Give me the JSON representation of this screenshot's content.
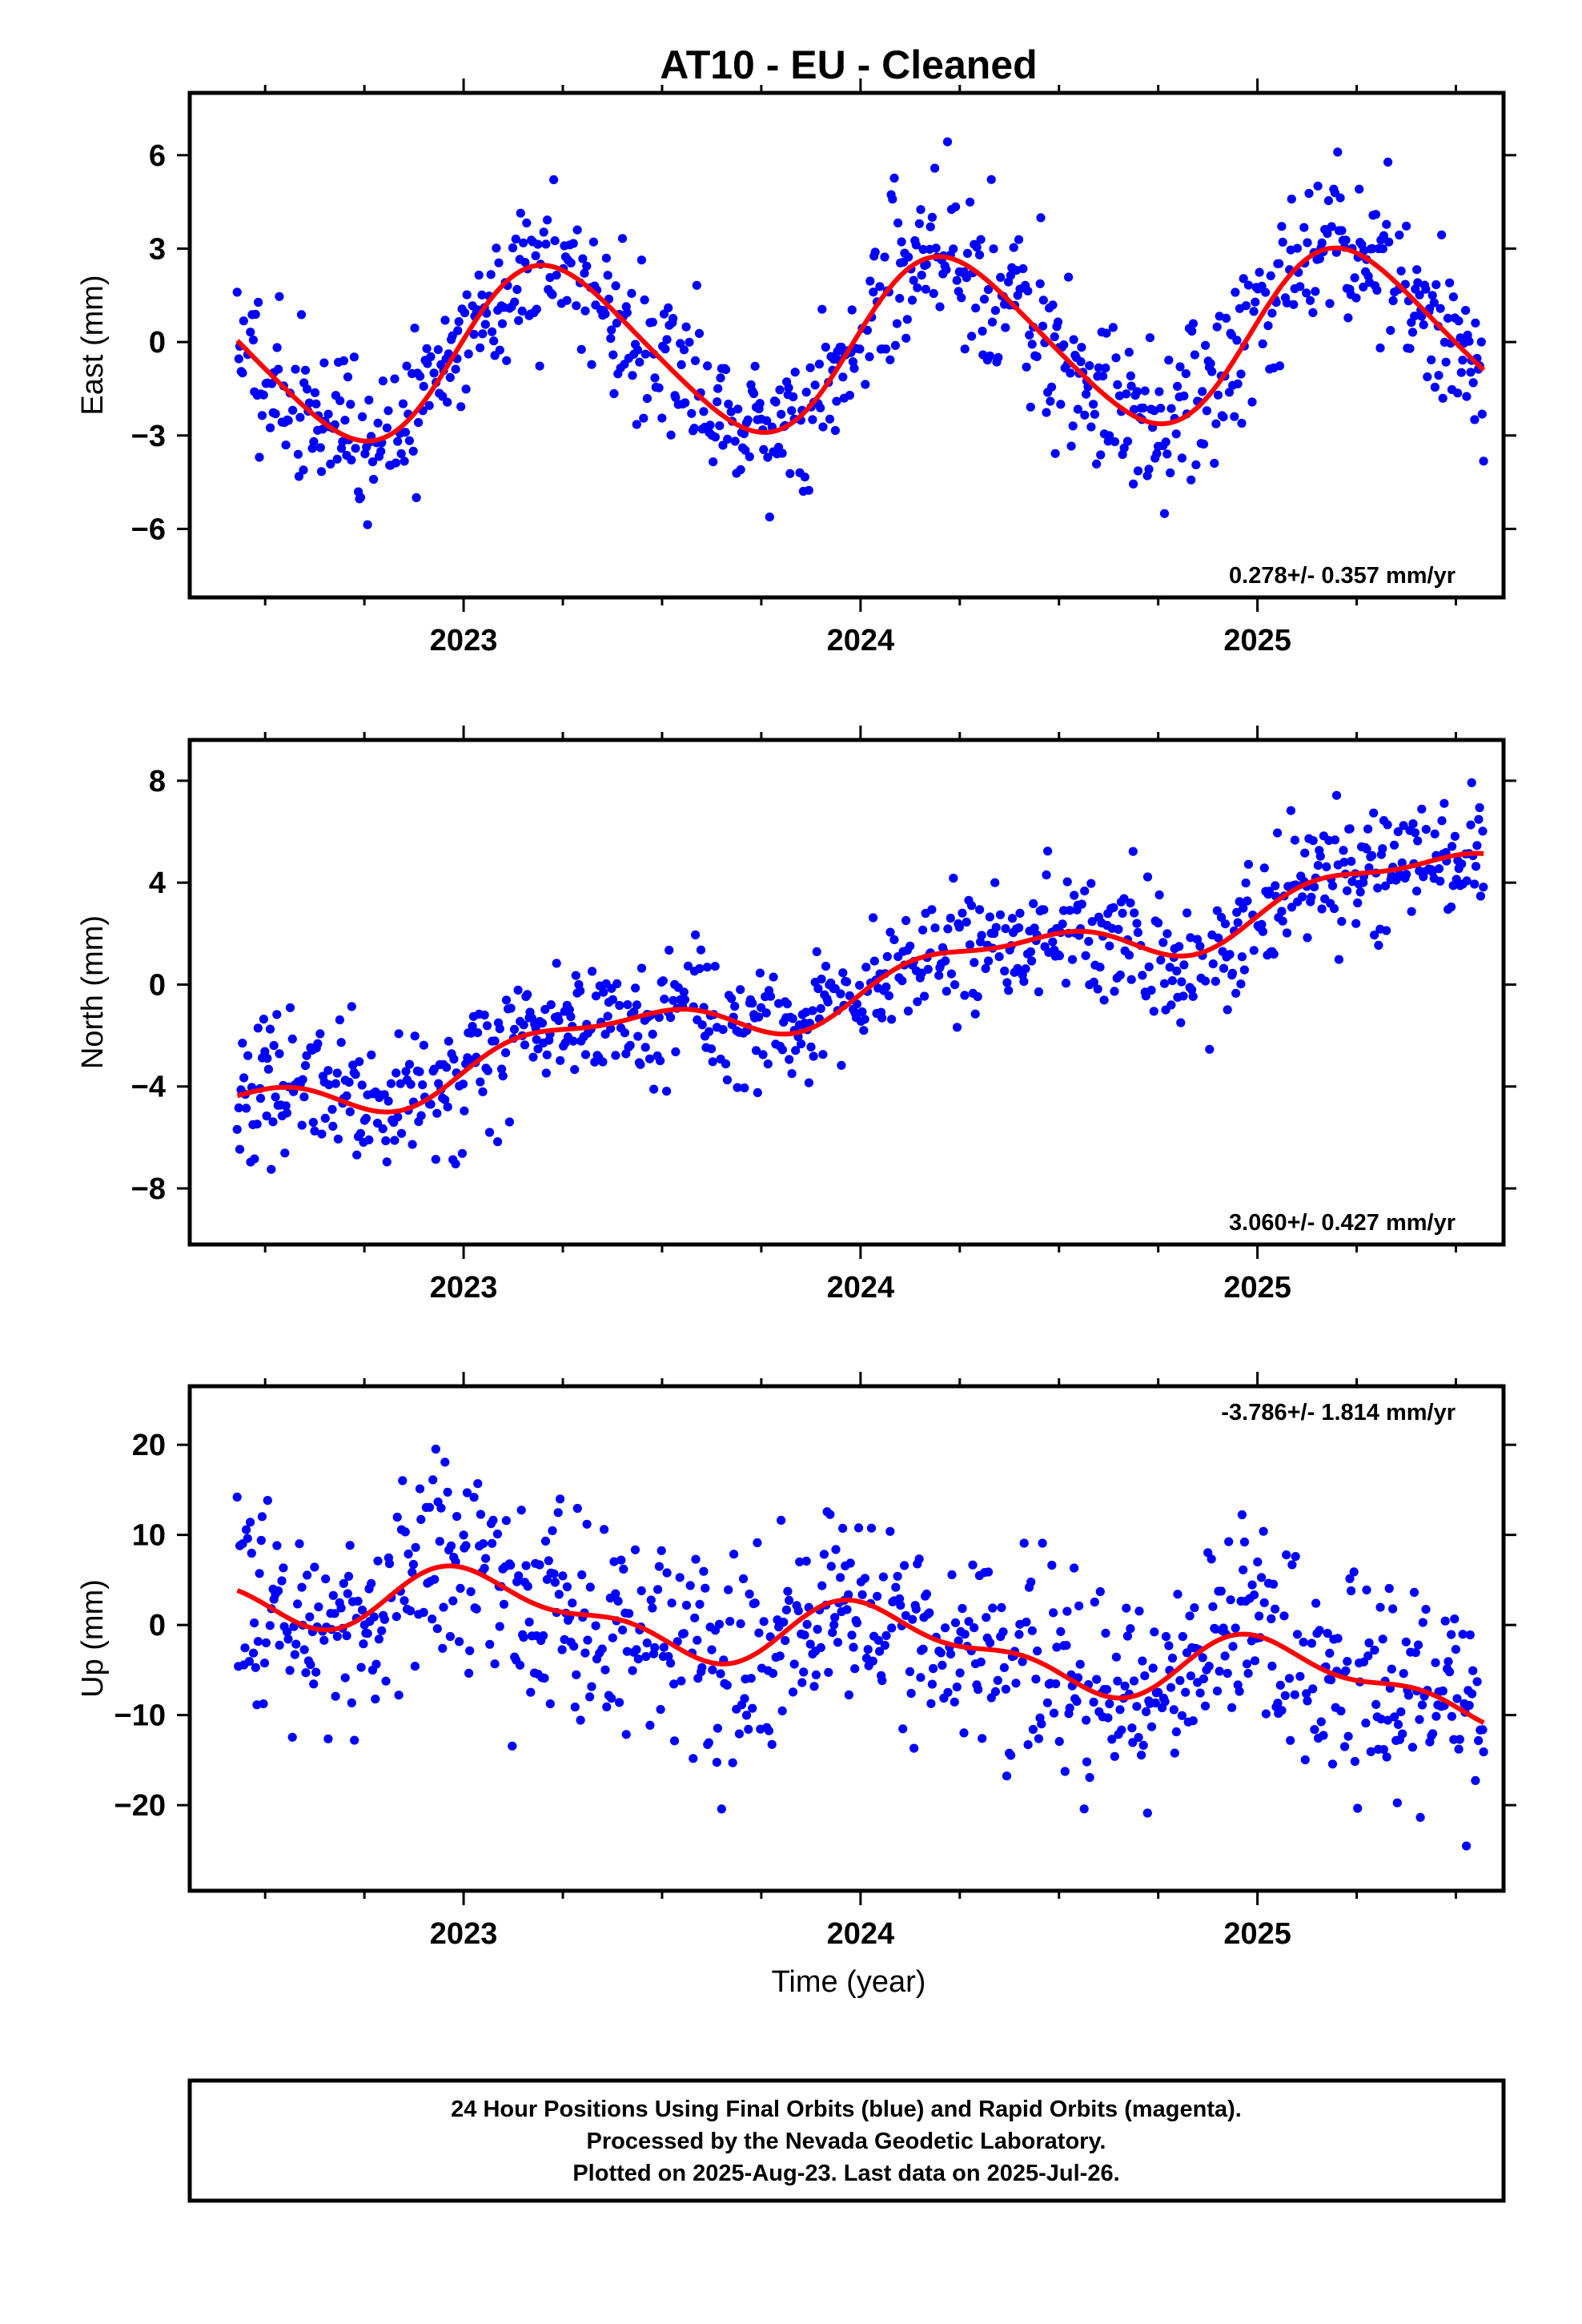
{
  "chart_data": [
    {
      "type": "scatter",
      "title": "AT10  - EU - Cleaned",
      "ylabel": "East (mm)",
      "xlabel": "",
      "xlim": [
        2022.31,
        2025.62
      ],
      "ylim": [
        -8.2,
        8.0
      ],
      "xticks_major": [
        2023,
        2024,
        2025
      ],
      "yticks": [
        -6,
        -3,
        0,
        3,
        6
      ],
      "yticklabels": [
        "−6",
        "−3",
        "0",
        "3",
        "6"
      ],
      "rate_label": "0.278+/- 0.357 mm/yr",
      "model": {
        "start": 2022.43,
        "end": 2025.57,
        "velocity": 0.278,
        "offset": -0.1,
        "annual_amp": 2.7,
        "annual_phase": 0.15,
        "semiannual_amp": 0.3,
        "semiannual_phase": 0.2
      },
      "scatter": {
        "count": 950,
        "noise": 1.2,
        "seed": 11,
        "color": "#0000ff"
      },
      "series": [
        {
          "kind": "points",
          "color": "#0000ff"
        },
        {
          "kind": "fit",
          "color": "#ff0000"
        }
      ]
    },
    {
      "type": "scatter",
      "ylabel": "North (mm)",
      "xlabel": "",
      "xlim": [
        2022.31,
        2025.62
      ],
      "ylim": [
        -10.2,
        9.6
      ],
      "xticks_major": [
        2023,
        2024,
        2025
      ],
      "yticks": [
        -8,
        -4,
        0,
        4,
        8
      ],
      "yticklabels": [
        "−8",
        "−4",
        "0",
        "4",
        "8"
      ],
      "rate_label": "3.060+/- 0.427 mm/yr",
      "model": {
        "start": 2022.43,
        "end": 2025.57,
        "velocity": 3.06,
        "offset": -0.1,
        "annual_amp": 0.9,
        "annual_phase": -0.5,
        "semiannual_amp": 0.4,
        "semiannual_phase": 0.4
      },
      "scatter": {
        "count": 950,
        "noise": 1.25,
        "seed": 23,
        "color": "#0000ff"
      },
      "series": [
        {
          "kind": "points",
          "color": "#0000ff"
        },
        {
          "kind": "fit",
          "color": "#ff0000"
        }
      ]
    },
    {
      "type": "scatter",
      "ylabel": "Up (mm)",
      "xlabel": "Time (year)",
      "xlim": [
        2022.31,
        2025.62
      ],
      "ylim": [
        -29.5,
        26.5
      ],
      "xticks_major": [
        2023,
        2024,
        2025
      ],
      "yticks": [
        -20,
        -10,
        0,
        10,
        20
      ],
      "yticklabels": [
        "−20",
        "−10",
        "0",
        "10",
        "20"
      ],
      "rate_label": "-3.786+/- 1.814 mm/yr",
      "model": {
        "start": 2022.43,
        "end": 2025.57,
        "velocity": -3.786,
        "offset": -1.5,
        "annual_amp": 3.2,
        "annual_phase": 1.2,
        "semiannual_amp": 1.6,
        "semiannual_phase": 2.4
      },
      "scatter": {
        "count": 950,
        "noise": 5.5,
        "seed": 37,
        "color": "#0000ff"
      },
      "series": [
        {
          "kind": "points",
          "color": "#0000ff"
        },
        {
          "kind": "fit",
          "color": "#ff0000"
        }
      ]
    }
  ],
  "footer": {
    "line1": "24 Hour Positions Using Final Orbits (blue) and Rapid Orbits (magenta).",
    "line2": "Processed by the Nevada Geodetic Laboratory.",
    "line3": "Plotted on 2025-Aug-23. Last data on 2025-Jul-26."
  }
}
